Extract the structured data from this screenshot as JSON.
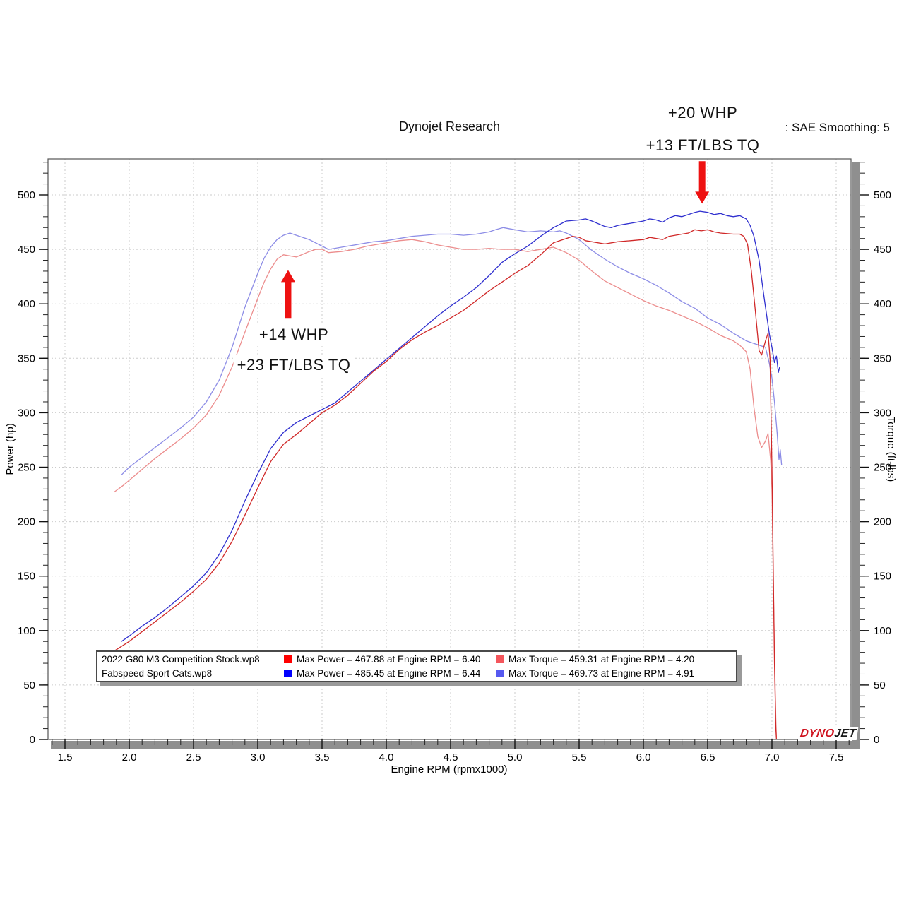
{
  "header": {
    "title": "Dynojet Research",
    "smoothing": ": SAE Smoothing: 5"
  },
  "annotations": {
    "high": {
      "line1": "+20 WHP",
      "line2": "+13 FT/LBS TQ"
    },
    "mid": {
      "line1": "+14 WHP",
      "line2": "+23 FT/LBS TQ"
    }
  },
  "legend": {
    "rows": [
      {
        "file": "2022 G80 M3 Competition Stock.wp8",
        "power_color": "#fe0000",
        "power_text": "Max Power = 467.88 at Engine RPM = 6.40",
        "torque_color": "#f4565c",
        "torque_text": "Max Torque = 459.31 at Engine RPM = 4.20"
      },
      {
        "file": "Fabspeed Sport Cats.wp8",
        "power_color": "#0000fe",
        "power_text": "Max Power = 485.45 at Engine RPM = 6.44",
        "torque_color": "#5659f0",
        "torque_text": "Max Torque = 469.73 at Engine RPM = 4.91"
      }
    ]
  },
  "logo": {
    "part1": "DYNO",
    "part2": "JET"
  },
  "chart_data": {
    "type": "line",
    "title": "Dynojet Research",
    "xlabel": "Engine RPM (rpmx1000)",
    "ylabel_left": "Power (hp)",
    "ylabel_right": "Torque (ft-lbs)",
    "xlim": [
      1.37,
      7.61
    ],
    "ylim": [
      0,
      533
    ],
    "grid": true,
    "x_ticks": [
      "1.5",
      "2.0",
      "2.5",
      "3.0",
      "3.5",
      "4.0",
      "4.5",
      "5.0",
      "5.5",
      "6.0",
      "6.5",
      "7.0",
      "7.5"
    ],
    "y_ticks": [
      "0",
      "50",
      "100",
      "150",
      "200",
      "250",
      "300",
      "350",
      "400",
      "450",
      "500"
    ],
    "x_minor_step": 0.1,
    "y_minor_step": 10,
    "style": {
      "grid": "#cbcbcb",
      "frame": "#555555",
      "bar": "#8f8f8f",
      "arrow": "#ee1111",
      "tick": "#222222"
    },
    "arrows": [
      {
        "x": 6.457,
        "tail": 531,
        "head": 492
      },
      {
        "x": 3.236,
        "tail": 387,
        "head": 431
      }
    ],
    "series": [
      {
        "id": "stock-torque",
        "name": "Stock Torque (ft-lbs)",
        "color": "#ec8d8d",
        "max": {
          "value": 459.31,
          "rpm": 4.2
        },
        "points": [
          [
            1.88,
            227
          ],
          [
            1.95,
            233
          ],
          [
            2.0,
            238
          ],
          [
            2.1,
            248
          ],
          [
            2.2,
            258
          ],
          [
            2.3,
            267
          ],
          [
            2.4,
            276
          ],
          [
            2.5,
            286
          ],
          [
            2.6,
            298
          ],
          [
            2.7,
            316
          ],
          [
            2.8,
            342
          ],
          [
            2.9,
            374
          ],
          [
            3.0,
            405
          ],
          [
            3.05,
            420
          ],
          [
            3.1,
            432
          ],
          [
            3.15,
            441
          ],
          [
            3.2,
            445
          ],
          [
            3.3,
            443
          ],
          [
            3.4,
            448
          ],
          [
            3.45,
            450
          ],
          [
            3.5,
            450
          ],
          [
            3.55,
            447
          ],
          [
            3.65,
            448
          ],
          [
            3.75,
            450
          ],
          [
            3.85,
            453
          ],
          [
            3.95,
            455
          ],
          [
            4.0,
            456
          ],
          [
            4.1,
            458
          ],
          [
            4.2,
            459
          ],
          [
            4.3,
            457
          ],
          [
            4.4,
            454
          ],
          [
            4.5,
            452
          ],
          [
            4.6,
            450
          ],
          [
            4.7,
            450
          ],
          [
            4.8,
            451
          ],
          [
            4.9,
            450
          ],
          [
            5.0,
            450
          ],
          [
            5.1,
            448
          ],
          [
            5.2,
            450
          ],
          [
            5.3,
            452
          ],
          [
            5.4,
            447
          ],
          [
            5.5,
            440
          ],
          [
            5.6,
            430
          ],
          [
            5.7,
            421
          ],
          [
            5.8,
            415
          ],
          [
            5.9,
            409
          ],
          [
            6.0,
            403
          ],
          [
            6.1,
            398
          ],
          [
            6.2,
            394
          ],
          [
            6.3,
            389
          ],
          [
            6.4,
            384
          ],
          [
            6.5,
            378
          ],
          [
            6.6,
            371
          ],
          [
            6.7,
            366
          ],
          [
            6.75,
            362
          ],
          [
            6.8,
            356
          ],
          [
            6.83,
            340
          ],
          [
            6.86,
            305
          ],
          [
            6.89,
            278
          ],
          [
            6.92,
            268
          ],
          [
            6.95,
            274
          ],
          [
            6.97,
            281
          ],
          [
            6.99,
            256
          ],
          [
            7.0,
            230
          ],
          [
            7.01,
            150
          ],
          [
            7.02,
            80
          ],
          [
            7.03,
            20
          ],
          [
            7.035,
            2
          ]
        ]
      },
      {
        "id": "fab-torque",
        "name": "Fabspeed Torque (ft-lbs)",
        "color": "#8d8de6",
        "max": {
          "value": 469.73,
          "rpm": 4.91
        },
        "points": [
          [
            1.94,
            243
          ],
          [
            2.0,
            250
          ],
          [
            2.1,
            259
          ],
          [
            2.2,
            268
          ],
          [
            2.3,
            277
          ],
          [
            2.4,
            286
          ],
          [
            2.5,
            296
          ],
          [
            2.6,
            310
          ],
          [
            2.7,
            330
          ],
          [
            2.8,
            360
          ],
          [
            2.9,
            397
          ],
          [
            3.0,
            428
          ],
          [
            3.05,
            442
          ],
          [
            3.1,
            452
          ],
          [
            3.15,
            459
          ],
          [
            3.2,
            463
          ],
          [
            3.25,
            465
          ],
          [
            3.3,
            463
          ],
          [
            3.4,
            459
          ],
          [
            3.5,
            453
          ],
          [
            3.55,
            450
          ],
          [
            3.6,
            451
          ],
          [
            3.7,
            453
          ],
          [
            3.8,
            455
          ],
          [
            3.9,
            457
          ],
          [
            4.0,
            458
          ],
          [
            4.1,
            460
          ],
          [
            4.2,
            462
          ],
          [
            4.3,
            463
          ],
          [
            4.4,
            464
          ],
          [
            4.5,
            464
          ],
          [
            4.6,
            463
          ],
          [
            4.7,
            464
          ],
          [
            4.8,
            466
          ],
          [
            4.85,
            468
          ],
          [
            4.91,
            470
          ],
          [
            5.0,
            468
          ],
          [
            5.1,
            466
          ],
          [
            5.2,
            467
          ],
          [
            5.3,
            466
          ],
          [
            5.35,
            467
          ],
          [
            5.4,
            465
          ],
          [
            5.5,
            459
          ],
          [
            5.6,
            449
          ],
          [
            5.7,
            441
          ],
          [
            5.8,
            434
          ],
          [
            5.9,
            428
          ],
          [
            6.0,
            423
          ],
          [
            6.1,
            417
          ],
          [
            6.2,
            410
          ],
          [
            6.3,
            402
          ],
          [
            6.4,
            396
          ],
          [
            6.5,
            387
          ],
          [
            6.6,
            381
          ],
          [
            6.7,
            373
          ],
          [
            6.8,
            366
          ],
          [
            6.9,
            362
          ],
          [
            6.95,
            360
          ],
          [
            6.98,
            345
          ],
          [
            7.0,
            332
          ],
          [
            7.02,
            310
          ],
          [
            7.04,
            282
          ],
          [
            7.05,
            265
          ],
          [
            7.055,
            257
          ],
          [
            7.065,
            266
          ],
          [
            7.075,
            252
          ]
        ]
      },
      {
        "id": "stock-power",
        "name": "Stock Power (hp)",
        "color": "#d02828",
        "max": {
          "value": 467.88,
          "rpm": 6.4
        },
        "points": [
          [
            1.88,
            81
          ],
          [
            2.0,
            90
          ],
          [
            2.1,
            99
          ],
          [
            2.2,
            108
          ],
          [
            2.3,
            117
          ],
          [
            2.4,
            126
          ],
          [
            2.5,
            136
          ],
          [
            2.6,
            147
          ],
          [
            2.7,
            162
          ],
          [
            2.8,
            182
          ],
          [
            2.9,
            206
          ],
          [
            3.0,
            231
          ],
          [
            3.1,
            255
          ],
          [
            3.2,
            271
          ],
          [
            3.3,
            280
          ],
          [
            3.4,
            290
          ],
          [
            3.5,
            300
          ],
          [
            3.6,
            307
          ],
          [
            3.7,
            316
          ],
          [
            3.8,
            327
          ],
          [
            3.9,
            338
          ],
          [
            4.0,
            347
          ],
          [
            4.1,
            358
          ],
          [
            4.2,
            367
          ],
          [
            4.3,
            374
          ],
          [
            4.4,
            380
          ],
          [
            4.5,
            387
          ],
          [
            4.6,
            394
          ],
          [
            4.7,
            403
          ],
          [
            4.8,
            412
          ],
          [
            4.9,
            420
          ],
          [
            5.0,
            428
          ],
          [
            5.1,
            435
          ],
          [
            5.2,
            445
          ],
          [
            5.3,
            456
          ],
          [
            5.4,
            460
          ],
          [
            5.45,
            462
          ],
          [
            5.5,
            461
          ],
          [
            5.55,
            458
          ],
          [
            5.6,
            457
          ],
          [
            5.7,
            455
          ],
          [
            5.8,
            457
          ],
          [
            5.9,
            458
          ],
          [
            6.0,
            459
          ],
          [
            6.05,
            461
          ],
          [
            6.1,
            460
          ],
          [
            6.15,
            459
          ],
          [
            6.2,
            462
          ],
          [
            6.3,
            464
          ],
          [
            6.35,
            465
          ],
          [
            6.4,
            468
          ],
          [
            6.45,
            467
          ],
          [
            6.5,
            468
          ],
          [
            6.55,
            466
          ],
          [
            6.6,
            465
          ],
          [
            6.7,
            464
          ],
          [
            6.75,
            464
          ],
          [
            6.78,
            462
          ],
          [
            6.81,
            455
          ],
          [
            6.84,
            430
          ],
          [
            6.87,
            395
          ],
          [
            6.9,
            357
          ],
          [
            6.92,
            353
          ],
          [
            6.95,
            366
          ],
          [
            6.97,
            373
          ],
          [
            6.985,
            350
          ],
          [
            7.0,
            250
          ],
          [
            7.01,
            160
          ],
          [
            7.02,
            70
          ],
          [
            7.03,
            10
          ],
          [
            7.035,
            0
          ]
        ]
      },
      {
        "id": "fab-power",
        "name": "Fabspeed Power (hp)",
        "color": "#3030cf",
        "max": {
          "value": 485.45,
          "rpm": 6.44
        },
        "points": [
          [
            1.94,
            90
          ],
          [
            2.0,
            95
          ],
          [
            2.1,
            104
          ],
          [
            2.2,
            112
          ],
          [
            2.3,
            121
          ],
          [
            2.4,
            131
          ],
          [
            2.5,
            141
          ],
          [
            2.6,
            153
          ],
          [
            2.7,
            170
          ],
          [
            2.8,
            192
          ],
          [
            2.9,
            219
          ],
          [
            3.0,
            244
          ],
          [
            3.1,
            267
          ],
          [
            3.2,
            282
          ],
          [
            3.3,
            291
          ],
          [
            3.4,
            297
          ],
          [
            3.5,
            303
          ],
          [
            3.6,
            309
          ],
          [
            3.7,
            319
          ],
          [
            3.8,
            329
          ],
          [
            3.9,
            339
          ],
          [
            4.0,
            349
          ],
          [
            4.1,
            359
          ],
          [
            4.2,
            369
          ],
          [
            4.3,
            379
          ],
          [
            4.4,
            389
          ],
          [
            4.5,
            398
          ],
          [
            4.6,
            406
          ],
          [
            4.7,
            415
          ],
          [
            4.8,
            426
          ],
          [
            4.9,
            438
          ],
          [
            5.0,
            446
          ],
          [
            5.1,
            453
          ],
          [
            5.2,
            462
          ],
          [
            5.3,
            470
          ],
          [
            5.4,
            476
          ],
          [
            5.5,
            477
          ],
          [
            5.55,
            478
          ],
          [
            5.6,
            476
          ],
          [
            5.7,
            471
          ],
          [
            5.75,
            470
          ],
          [
            5.8,
            472
          ],
          [
            5.9,
            474
          ],
          [
            6.0,
            476
          ],
          [
            6.05,
            478
          ],
          [
            6.1,
            477
          ],
          [
            6.15,
            475
          ],
          [
            6.2,
            479
          ],
          [
            6.25,
            481
          ],
          [
            6.3,
            480
          ],
          [
            6.35,
            482
          ],
          [
            6.4,
            484
          ],
          [
            6.44,
            485
          ],
          [
            6.5,
            484
          ],
          [
            6.55,
            482
          ],
          [
            6.6,
            483
          ],
          [
            6.65,
            481
          ],
          [
            6.7,
            480
          ],
          [
            6.75,
            481
          ],
          [
            6.8,
            478
          ],
          [
            6.83,
            472
          ],
          [
            6.86,
            462
          ],
          [
            6.9,
            440
          ],
          [
            6.94,
            405
          ],
          [
            6.98,
            372
          ],
          [
            7.0,
            360
          ],
          [
            7.02,
            346
          ],
          [
            7.035,
            352
          ],
          [
            7.05,
            337
          ],
          [
            7.06,
            342
          ]
        ]
      }
    ]
  }
}
